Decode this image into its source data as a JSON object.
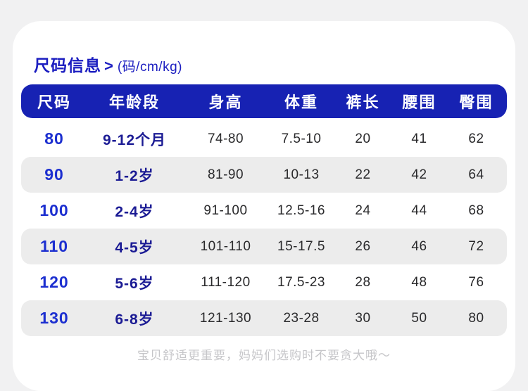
{
  "page": {
    "title": "尺码信息",
    "title_arrow": ">",
    "subtitle": "(码/cm/kg)",
    "footer_note": "宝贝舒适更重要，妈妈们选购时不要贪大哦～"
  },
  "table": {
    "headers": [
      "尺码",
      "年龄段",
      "身高",
      "体重",
      "裤长",
      "腰围",
      "臀围"
    ],
    "rows": [
      {
        "size": "80",
        "age": "9-12个月",
        "height": "74-80",
        "weight": "7.5-10",
        "pants_length": "20",
        "waist": "41",
        "hip": "62"
      },
      {
        "size": "90",
        "age": "1-2岁",
        "height": "81-90",
        "weight": "10-13",
        "pants_length": "22",
        "waist": "42",
        "hip": "64"
      },
      {
        "size": "100",
        "age": "2-4岁",
        "height": "91-100",
        "weight": "12.5-16",
        "pants_length": "24",
        "waist": "44",
        "hip": "68"
      },
      {
        "size": "110",
        "age": "4-5岁",
        "height": "101-110",
        "weight": "15-17.5",
        "pants_length": "26",
        "waist": "46",
        "hip": "72"
      },
      {
        "size": "120",
        "age": "5-6岁",
        "height": "111-120",
        "weight": "17.5-23",
        "pants_length": "28",
        "waist": "48",
        "hip": "76"
      },
      {
        "size": "130",
        "age": "6-8岁",
        "height": "121-130",
        "weight": "23-28",
        "pants_length": "30",
        "waist": "50",
        "hip": "80"
      }
    ]
  },
  "colors": {
    "page_background": "#f1f1f2",
    "card_background": "#ffffff",
    "header_bar": "#1722b3",
    "header_text": "#ffffff",
    "title_blue": "#1b1dc0",
    "size_blue": "#1c2fd0",
    "age_navy": "#1b1b94",
    "cell_text": "#29292b",
    "alt_row": "#ececec",
    "footer_text": "#c6c6c9"
  }
}
